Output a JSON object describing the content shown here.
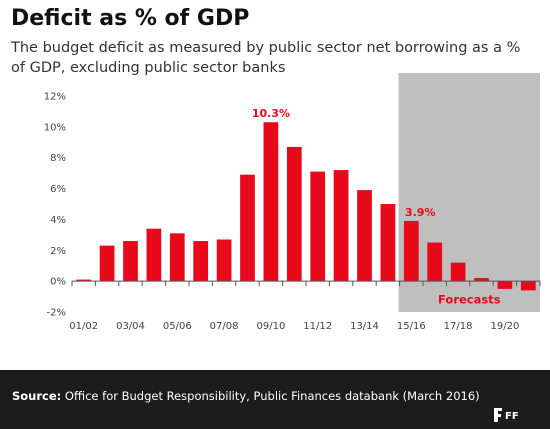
{
  "title": "Deficit as % of GDP",
  "subtitle": "The budget deficit as measured by public sector net borrowing as a % of GDP, excluding public sector banks",
  "footer": {
    "source_label": "Source:",
    "source_text": "Office for Budget Responsibility, Public Finances databank (March 2016)",
    "logo_text": "Full Fact"
  },
  "colors": {
    "bar": "#e8091a",
    "forecast_shade": "#bfbfbf",
    "footer_bg": "#1c1c1c"
  },
  "chart_data": {
    "type": "bar",
    "categories": [
      "2001/02",
      "2002/03",
      "2003/04",
      "2004/05",
      "2005/06",
      "2006/07",
      "2007/08",
      "2008/09",
      "2009/10",
      "2010/11",
      "2011/12",
      "2012/13",
      "2013/14",
      "2014/15",
      "2015/16",
      "2016/17",
      "2017/18",
      "2018/19",
      "2019/20",
      "2020/21"
    ],
    "x_tick_labels": [
      "01/02",
      "03/04",
      "05/06",
      "07/08",
      "09/10",
      "11/12",
      "13/14",
      "15/16",
      "17/18",
      "19/20"
    ],
    "values": [
      0.1,
      2.3,
      2.6,
      3.4,
      3.1,
      2.6,
      2.7,
      6.9,
      10.3,
      8.7,
      7.1,
      7.2,
      5.9,
      5.0,
      3.9,
      2.5,
      1.2,
      0.2,
      -0.5,
      -0.6
    ],
    "ylim": [
      -2,
      12
    ],
    "y_ticks": [
      -2,
      0,
      2,
      4,
      6,
      8,
      10,
      12
    ],
    "y_tick_labels": [
      "-2%",
      "0%",
      "2%",
      "4%",
      "6%",
      "8%",
      "10%",
      "12%"
    ],
    "data_labels": [
      {
        "category": "2009/10",
        "text": "10.3%"
      },
      {
        "category": "2015/16",
        "text": "3.9%"
      }
    ],
    "forecast_region": {
      "from": "2015/16",
      "to": "2020/21",
      "label": "Forecasts"
    },
    "xlabel": "",
    "ylabel": "",
    "grid": false
  }
}
